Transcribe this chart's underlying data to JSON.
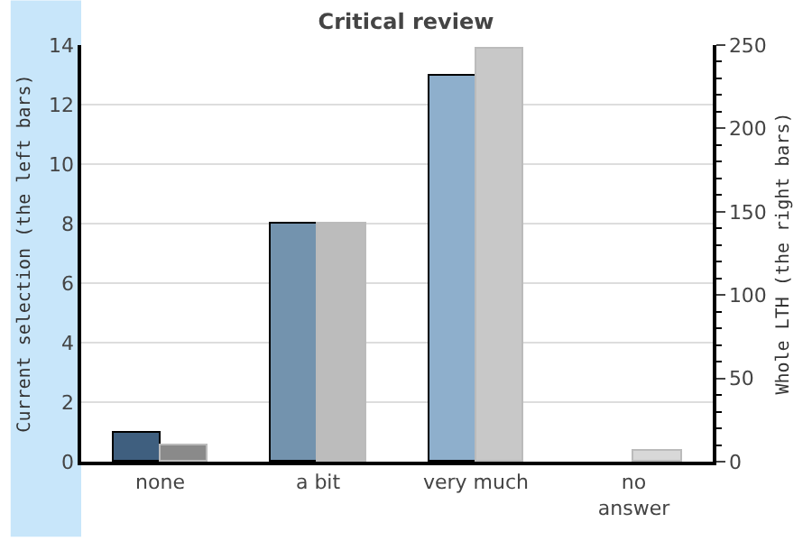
{
  "chart_data": {
    "type": "bar",
    "title": "Critical review",
    "categories": [
      "none",
      "a bit",
      "very much",
      "no\nanswer"
    ],
    "series": [
      {
        "colors": [
          "#3f5f7f",
          "#7393ae",
          "#8eafcc",
          "#8eafcc"
        ],
        "values": [
          1,
          8,
          13,
          0
        ]
      },
      {
        "colors": [
          "#8a8a8a",
          "#bcbcbc",
          "#c8c8c8",
          "#d8d8d8"
        ],
        "values": [
          10,
          143,
          248,
          6
        ],
        "axis": "y2"
      }
    ],
    "ylabel": "Current selection (the left bars)",
    "y2label": "Whole LTH (the right bars)",
    "ylim": [
      0,
      14
    ],
    "yticks": [
      0,
      2,
      4,
      6,
      8,
      10,
      12,
      14
    ],
    "y2lim": [
      0,
      250
    ],
    "y2ticks": [
      0,
      50,
      100,
      150,
      200,
      250
    ],
    "grid": "y"
  }
}
